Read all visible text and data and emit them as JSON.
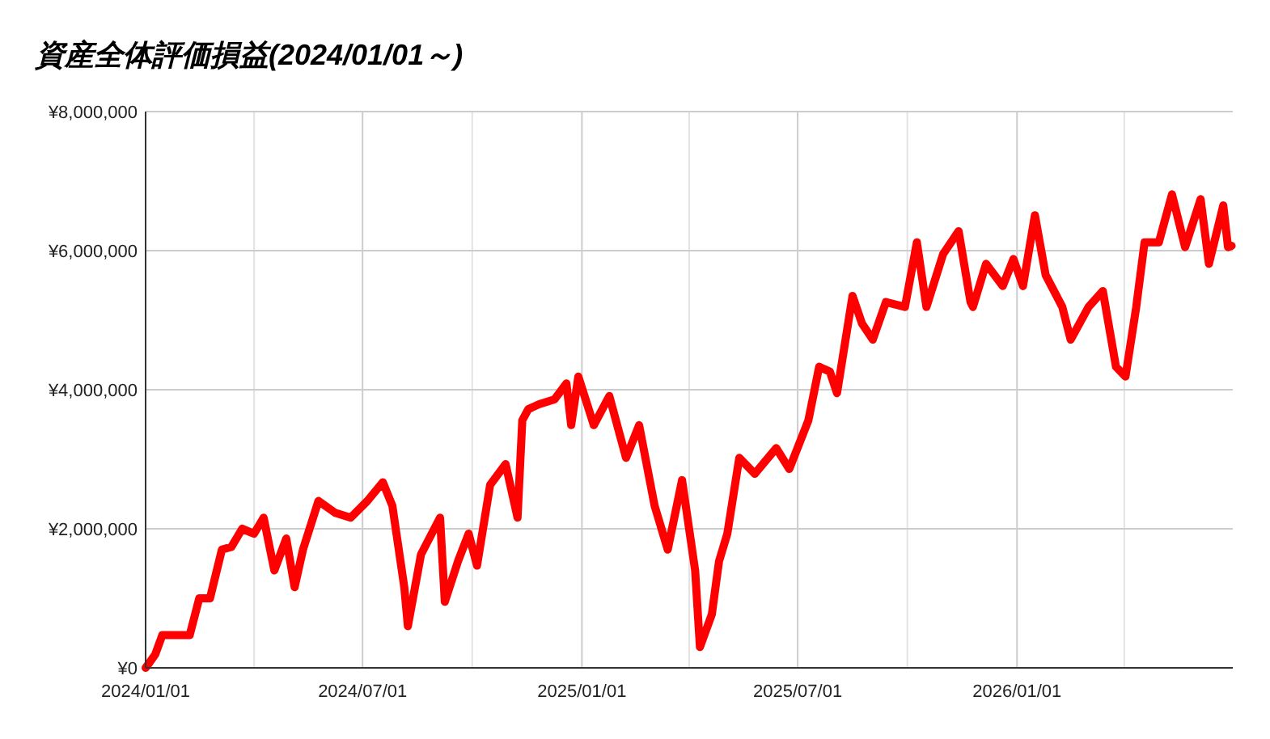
{
  "chart_data": {
    "type": "line",
    "title": "資産全体評価損益(2024/01/01～)",
    "x": [
      "2024-01-01",
      "2024-01-04",
      "2024-01-09",
      "2024-01-15",
      "2024-02-07",
      "2024-02-15",
      "2024-02-24",
      "2024-03-05",
      "2024-03-13",
      "2024-03-22",
      "2024-04-01",
      "2024-04-09",
      "2024-04-18",
      "2024-04-28",
      "2024-05-05",
      "2024-05-12",
      "2024-05-25",
      "2024-06-08",
      "2024-06-21",
      "2024-07-05",
      "2024-07-18",
      "2024-07-26",
      "2024-08-05",
      "2024-08-08",
      "2024-08-19",
      "2024-09-04",
      "2024-09-08",
      "2024-09-19",
      "2024-09-28",
      "2024-10-05",
      "2024-10-16",
      "2024-10-29",
      "2024-11-08",
      "2024-11-12",
      "2024-11-17",
      "2024-11-26",
      "2024-12-09",
      "2024-12-19",
      "2024-12-23",
      "2024-12-29",
      "2025-01-11",
      "2025-01-24",
      "2025-02-07",
      "2025-02-18",
      "2025-03-03",
      "2025-03-14",
      "2025-03-26",
      "2025-04-06",
      "2025-04-10",
      "2025-04-20",
      "2025-04-26",
      "2025-05-03",
      "2025-05-13",
      "2025-05-26",
      "2025-06-13",
      "2025-06-24",
      "2025-07-10",
      "2025-07-19",
      "2025-07-28",
      "2025-08-03",
      "2025-08-16",
      "2025-08-24",
      "2025-09-02",
      "2025-09-13",
      "2025-09-29",
      "2025-10-09",
      "2025-10-17",
      "2025-10-31",
      "2025-11-13",
      "2025-11-23",
      "2025-11-25",
      "2025-12-06",
      "2025-12-20",
      "2025-12-29",
      "2026-01-06",
      "2026-01-16",
      "2026-01-25",
      "2026-02-08",
      "2026-02-15",
      "2026-03-02",
      "2026-03-14",
      "2026-03-25",
      "2026-04-02",
      "2026-04-11",
      "2026-04-18",
      "2026-04-30",
      "2026-05-11",
      "2026-05-22",
      "2026-06-04",
      "2026-06-11",
      "2026-06-23",
      "2026-06-27",
      "2026-06-30"
    ],
    "series": [
      {
        "color": "#ff0000",
        "values": [
          0,
          70000,
          190000,
          470000,
          470000,
          1000000,
          1000000,
          1700000,
          1740000,
          2000000,
          1930000,
          2160000,
          1400000,
          1860000,
          1160000,
          1700000,
          2400000,
          2230000,
          2160000,
          2400000,
          2670000,
          2330000,
          1160000,
          600000,
          1630000,
          2160000,
          950000,
          1530000,
          1930000,
          1470000,
          2630000,
          2930000,
          2160000,
          3560000,
          3720000,
          3790000,
          3860000,
          4090000,
          3490000,
          4190000,
          3490000,
          3910000,
          3020000,
          3490000,
          2330000,
          1700000,
          2700000,
          1400000,
          300000,
          770000,
          1530000,
          1930000,
          3020000,
          2790000,
          3160000,
          2860000,
          3560000,
          4330000,
          4260000,
          3950000,
          5350000,
          4950000,
          4720000,
          5260000,
          5190000,
          6120000,
          5190000,
          5950000,
          6280000,
          5260000,
          5190000,
          5810000,
          5490000,
          5880000,
          5490000,
          6510000,
          5650000,
          5190000,
          4720000,
          5190000,
          5420000,
          4330000,
          4190000,
          5190000,
          6120000,
          6120000,
          6810000,
          6050000,
          6740000,
          5810000,
          6650000,
          6050000,
          6070000
        ]
      }
    ],
    "xlim": [
      "2024-01-01",
      "2026-07-01"
    ],
    "xticks": [
      {
        "value": "2024-01-01",
        "label": "2024/01/01"
      },
      {
        "value": "2024-04-01",
        "label": null
      },
      {
        "value": "2024-07-01",
        "label": "2024/07/01"
      },
      {
        "value": "2024-10-01",
        "label": null
      },
      {
        "value": "2025-01-01",
        "label": "2025/01/01"
      },
      {
        "value": "2025-04-01",
        "label": null
      },
      {
        "value": "2025-07-01",
        "label": "2025/07/01"
      },
      {
        "value": "2025-10-01",
        "label": null
      },
      {
        "value": "2026-01-01",
        "label": "2026/01/01"
      },
      {
        "value": "2026-04-01",
        "label": null
      }
    ],
    "ylim": [
      0,
      8000000
    ],
    "yticks": [
      {
        "value": 0,
        "label": "¥0"
      },
      {
        "value": 2000000,
        "label": "¥2,000,000"
      },
      {
        "value": 4000000,
        "label": "¥4,000,000"
      },
      {
        "value": 6000000,
        "label": "¥6,000,000"
      },
      {
        "value": 8000000,
        "label": "¥8,000,000"
      }
    ],
    "grid": true,
    "marker": "none",
    "line_style": "solid"
  }
}
